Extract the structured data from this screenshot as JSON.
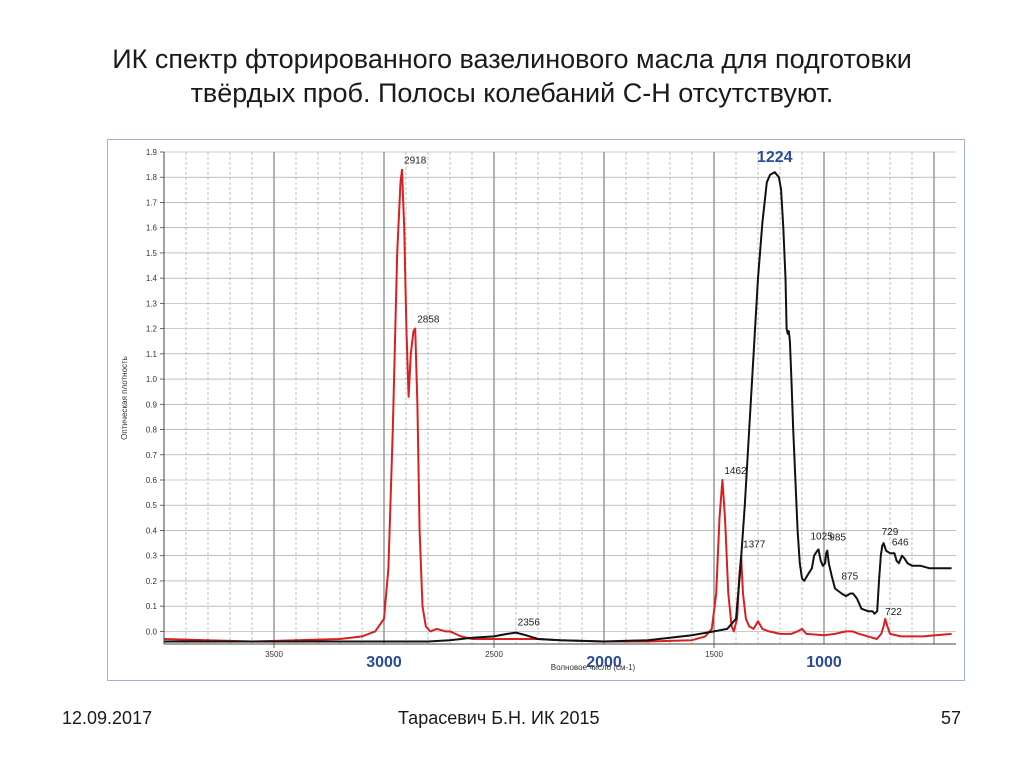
{
  "slide": {
    "title_line1": "ИК спектр фторированного вазелинового масла для подготовки",
    "title_line2": "твёрдых проб. Полосы колебаний С-Н отсутствуют.",
    "footer_date": "12.09.2017",
    "footer_author": "Тарасевич Б.Н.  ИК 2015",
    "footer_page": "57"
  },
  "chart_data": {
    "type": "line",
    "xlabel": "Волновое число (см-1)",
    "ylabel": "Оптическая плотность",
    "xlim": [
      4000,
      400
    ],
    "ylim": [
      -0.05,
      1.9
    ],
    "grid": true,
    "x_ticks": [
      {
        "value": 3500,
        "label": "3500"
      },
      {
        "value": 2500,
        "label": "2500"
      },
      {
        "value": 1500,
        "label": "1500"
      }
    ],
    "x_big_labels": [
      {
        "value": 3000,
        "label": "3000"
      },
      {
        "value": 2000,
        "label": "2000"
      },
      {
        "value": 1000,
        "label": "1000"
      }
    ],
    "y_ticks": [
      0.0,
      0.1,
      0.2,
      0.3,
      0.4,
      0.5,
      0.6,
      0.7,
      0.8,
      0.9,
      1.0,
      1.1,
      1.2,
      1.3,
      1.4,
      1.5,
      1.6,
      1.7,
      1.8,
      1.9
    ],
    "y_tick_labels": [
      "0.0",
      "0.1",
      "0.2",
      "0.3",
      "0.4",
      "0.5",
      "0.6",
      "0.7",
      "0.8",
      "0.9",
      "1.0",
      "1.1",
      "1.2",
      "1.3",
      "1.4",
      "1.5",
      "1.6",
      "1.7",
      "1.8",
      "1.9"
    ],
    "series": [
      {
        "color": "#d92020",
        "points": [
          [
            4000,
            -0.03
          ],
          [
            3800,
            -0.035
          ],
          [
            3600,
            -0.04
          ],
          [
            3400,
            -0.035
          ],
          [
            3200,
            -0.03
          ],
          [
            3100,
            -0.02
          ],
          [
            3040,
            0.0
          ],
          [
            3000,
            0.05
          ],
          [
            2980,
            0.25
          ],
          [
            2960,
            0.8
          ],
          [
            2940,
            1.5
          ],
          [
            2925,
            1.78
          ],
          [
            2918,
            1.83
          ],
          [
            2908,
            1.6
          ],
          [
            2898,
            1.2
          ],
          [
            2888,
            0.93
          ],
          [
            2878,
            1.1
          ],
          [
            2866,
            1.19
          ],
          [
            2858,
            1.2
          ],
          [
            2848,
            0.9
          ],
          [
            2838,
            0.4
          ],
          [
            2825,
            0.1
          ],
          [
            2810,
            0.02
          ],
          [
            2790,
            0.0
          ],
          [
            2760,
            0.01
          ],
          [
            2720,
            0.0
          ],
          [
            2700,
            0.0
          ],
          [
            2650,
            -0.02
          ],
          [
            2600,
            -0.03
          ],
          [
            2500,
            -0.03
          ],
          [
            2400,
            -0.03
          ],
          [
            2300,
            -0.03
          ],
          [
            2200,
            -0.035
          ],
          [
            2000,
            -0.04
          ],
          [
            1800,
            -0.04
          ],
          [
            1600,
            -0.035
          ],
          [
            1540,
            -0.02
          ],
          [
            1510,
            0.01
          ],
          [
            1490,
            0.15
          ],
          [
            1475,
            0.45
          ],
          [
            1462,
            0.6
          ],
          [
            1450,
            0.45
          ],
          [
            1435,
            0.15
          ],
          [
            1420,
            0.02
          ],
          [
            1410,
            0.0
          ],
          [
            1395,
            0.05
          ],
          [
            1385,
            0.22
          ],
          [
            1377,
            0.3
          ],
          [
            1368,
            0.15
          ],
          [
            1355,
            0.05
          ],
          [
            1340,
            0.02
          ],
          [
            1320,
            0.01
          ],
          [
            1300,
            0.04
          ],
          [
            1280,
            0.01
          ],
          [
            1250,
            0.0
          ],
          [
            1200,
            -0.01
          ],
          [
            1150,
            -0.01
          ],
          [
            1120,
            0.0
          ],
          [
            1100,
            0.01
          ],
          [
            1080,
            -0.01
          ],
          [
            1000,
            -0.015
          ],
          [
            950,
            -0.01
          ],
          [
            900,
            0.0
          ],
          [
            870,
            0.0
          ],
          [
            840,
            -0.01
          ],
          [
            800,
            -0.02
          ],
          [
            760,
            -0.03
          ],
          [
            740,
            -0.01
          ],
          [
            729,
            0.02
          ],
          [
            722,
            0.05
          ],
          [
            712,
            0.02
          ],
          [
            700,
            -0.01
          ],
          [
            650,
            -0.02
          ],
          [
            550,
            -0.02
          ],
          [
            420,
            -0.01
          ]
        ]
      },
      {
        "color": "#111111",
        "points": [
          [
            4000,
            -0.04
          ],
          [
            3500,
            -0.04
          ],
          [
            3000,
            -0.04
          ],
          [
            2800,
            -0.04
          ],
          [
            2700,
            -0.035
          ],
          [
            2600,
            -0.025
          ],
          [
            2500,
            -0.02
          ],
          [
            2440,
            -0.01
          ],
          [
            2400,
            -0.005
          ],
          [
            2356,
            -0.015
          ],
          [
            2300,
            -0.03
          ],
          [
            2200,
            -0.035
          ],
          [
            2000,
            -0.04
          ],
          [
            1800,
            -0.035
          ],
          [
            1700,
            -0.025
          ],
          [
            1600,
            -0.015
          ],
          [
            1500,
            0.0
          ],
          [
            1440,
            0.01
          ],
          [
            1400,
            0.05
          ],
          [
            1380,
            0.25
          ],
          [
            1360,
            0.5
          ],
          [
            1340,
            0.8
          ],
          [
            1320,
            1.1
          ],
          [
            1300,
            1.4
          ],
          [
            1280,
            1.62
          ],
          [
            1260,
            1.78
          ],
          [
            1245,
            1.81
          ],
          [
            1224,
            1.82
          ],
          [
            1205,
            1.8
          ],
          [
            1195,
            1.75
          ],
          [
            1185,
            1.6
          ],
          [
            1175,
            1.4
          ],
          [
            1170,
            1.2
          ],
          [
            1165,
            1.18
          ],
          [
            1160,
            1.19
          ],
          [
            1155,
            1.15
          ],
          [
            1148,
            1.0
          ],
          [
            1140,
            0.8
          ],
          [
            1130,
            0.6
          ],
          [
            1120,
            0.4
          ],
          [
            1110,
            0.27
          ],
          [
            1100,
            0.21
          ],
          [
            1090,
            0.2
          ],
          [
            1070,
            0.23
          ],
          [
            1055,
            0.25
          ],
          [
            1045,
            0.3
          ],
          [
            1030,
            0.32
          ],
          [
            1025,
            0.325
          ],
          [
            1015,
            0.28
          ],
          [
            1005,
            0.26
          ],
          [
            995,
            0.27
          ],
          [
            990,
            0.31
          ],
          [
            985,
            0.32
          ],
          [
            978,
            0.27
          ],
          [
            965,
            0.22
          ],
          [
            950,
            0.17
          ],
          [
            920,
            0.15
          ],
          [
            900,
            0.14
          ],
          [
            880,
            0.15
          ],
          [
            868,
            0.15
          ],
          [
            850,
            0.13
          ],
          [
            830,
            0.09
          ],
          [
            800,
            0.08
          ],
          [
            780,
            0.08
          ],
          [
            770,
            0.07
          ],
          [
            758,
            0.08
          ],
          [
            750,
            0.2
          ],
          [
            742,
            0.3
          ],
          [
            735,
            0.34
          ],
          [
            729,
            0.35
          ],
          [
            718,
            0.32
          ],
          [
            700,
            0.31
          ],
          [
            680,
            0.31
          ],
          [
            670,
            0.28
          ],
          [
            660,
            0.27
          ],
          [
            650,
            0.29
          ],
          [
            646,
            0.3
          ],
          [
            635,
            0.29
          ],
          [
            620,
            0.27
          ],
          [
            600,
            0.26
          ],
          [
            560,
            0.26
          ],
          [
            520,
            0.25
          ],
          [
            470,
            0.25
          ],
          [
            420,
            0.25
          ]
        ]
      }
    ],
    "annotations": [
      {
        "x": 2918,
        "y": 1.83,
        "text": "2918",
        "style": "small"
      },
      {
        "x": 2858,
        "y": 1.2,
        "text": "2858",
        "style": "small"
      },
      {
        "x": 2356,
        "y": 0.0,
        "text": "2356",
        "style": "small"
      },
      {
        "x": 1462,
        "y": 0.6,
        "text": "1462",
        "style": "small"
      },
      {
        "x": 1377,
        "y": 0.3,
        "text": "1377",
        "style": "small"
      },
      {
        "x": 1224,
        "y": 1.82,
        "text": "1224",
        "style": "big"
      },
      {
        "x": 1025,
        "y": 0.325,
        "text": "1025",
        "style": "small"
      },
      {
        "x": 985,
        "y": 0.32,
        "text": "985",
        "style": "small"
      },
      {
        "x": 875,
        "y": 0.15,
        "text": "875",
        "style": "small"
      },
      {
        "x": 729,
        "y": 0.35,
        "text": "729",
        "style": "small"
      },
      {
        "x": 722,
        "y": 0.05,
        "text": "722",
        "style": "small"
      },
      {
        "x": 646,
        "y": 0.3,
        "text": "646",
        "style": "small"
      }
    ]
  }
}
